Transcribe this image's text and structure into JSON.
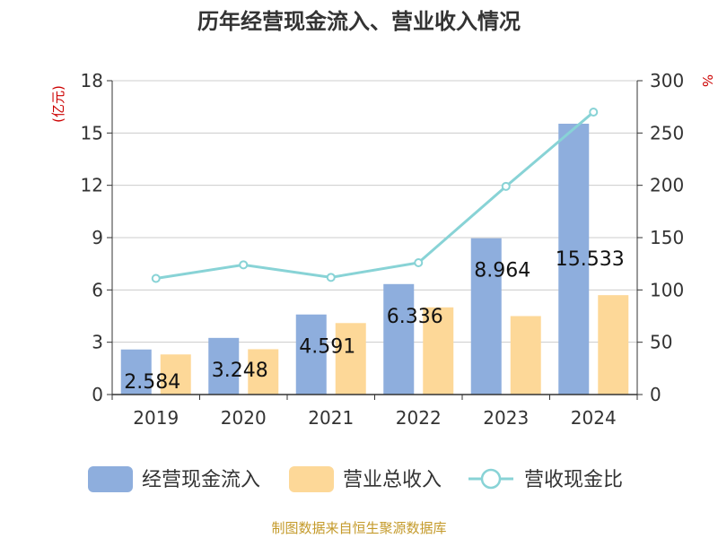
{
  "chart_data": {
    "type": "bar",
    "title": "历年经营现金流入、营业收入情况",
    "left_unit": "(亿元)",
    "right_unit": "%",
    "categories": [
      "2019",
      "2020",
      "2021",
      "2022",
      "2023",
      "2024"
    ],
    "series": [
      {
        "name": "经营现金流入",
        "type": "bar",
        "axis": "left",
        "color": "#8eaedd",
        "values": [
          2.584,
          3.248,
          4.591,
          6.336,
          8.964,
          15.533
        ],
        "labels": [
          "2.584",
          "3.248",
          "4.591",
          "6.336",
          "8.964",
          "15.533"
        ]
      },
      {
        "name": "营业总收入",
        "type": "bar",
        "axis": "left",
        "color": "#fdd898",
        "values": [
          2.3,
          2.6,
          4.1,
          5.0,
          4.5,
          5.7
        ]
      },
      {
        "name": "营收现金比",
        "type": "line",
        "axis": "right",
        "color": "#88d3d6",
        "values": [
          111,
          124,
          112,
          126,
          199,
          270
        ]
      }
    ],
    "y_left": {
      "min": 0,
      "max": 18,
      "ticks": [
        0,
        3,
        6,
        9,
        12,
        15,
        18
      ]
    },
    "y_right": {
      "min": 0,
      "max": 300,
      "ticks": [
        0,
        50,
        100,
        150,
        200,
        250,
        300
      ]
    },
    "grid": true,
    "legend": "bottom"
  },
  "source": "制图数据来自恒生聚源数据库",
  "colors": {
    "title": "#333333",
    "unit": "#cc0000",
    "source": "#c49a2a",
    "grid": "#cccccc",
    "axis": "#333333"
  }
}
